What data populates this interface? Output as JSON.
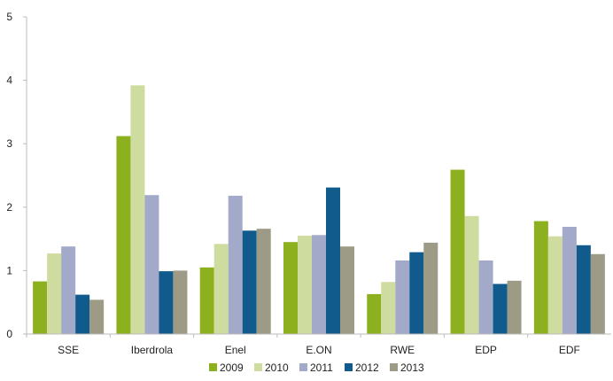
{
  "chart_data": {
    "type": "bar",
    "title": "",
    "xlabel": "",
    "ylabel": "",
    "ylim": [
      0,
      5
    ],
    "yticks": [
      "0",
      "1",
      "2",
      "3",
      "4",
      "5"
    ],
    "grid": false,
    "legend_position": "bottom",
    "categories": [
      "SSE",
      "Iberdrola",
      "Enel",
      "E.ON",
      "RWE",
      "EDP",
      "EDF"
    ],
    "series": [
      {
        "name": "2009",
        "color": "#8db01f",
        "values": [
          0.83,
          3.12,
          1.05,
          1.45,
          0.63,
          2.59,
          1.78
        ]
      },
      {
        "name": "2010",
        "color": "#cfdc9f",
        "values": [
          1.27,
          3.92,
          1.42,
          1.55,
          0.82,
          1.86,
          1.54
        ]
      },
      {
        "name": "2011",
        "color": "#a2a9c9",
        "values": [
          1.38,
          2.19,
          2.18,
          1.56,
          1.16,
          1.16,
          1.69
        ]
      },
      {
        "name": "2012",
        "color": "#105a8c",
        "values": [
          0.62,
          0.99,
          1.63,
          2.31,
          1.29,
          0.79,
          1.4
        ]
      },
      {
        "name": "2013",
        "color": "#9d9b86",
        "values": [
          0.54,
          1.0,
          1.66,
          1.38,
          1.44,
          0.84,
          1.26
        ]
      }
    ]
  }
}
